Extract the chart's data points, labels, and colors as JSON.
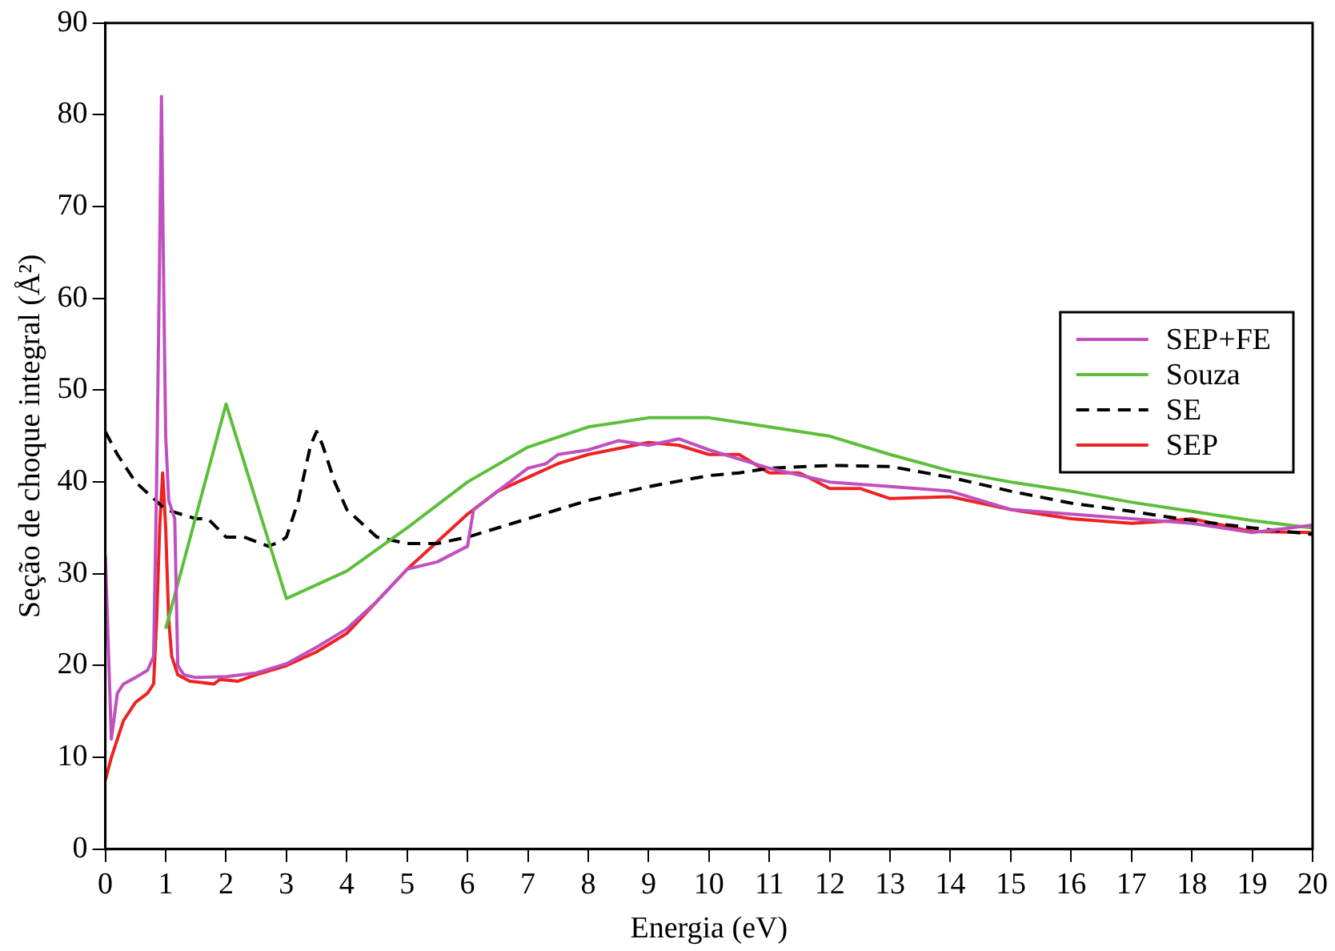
{
  "chart_data": {
    "type": "line",
    "xlabel": "Energia (eV)",
    "ylabel": "Seção de choque integral (Å²)",
    "xlim": [
      0,
      20
    ],
    "xticks": [
      0,
      1,
      2,
      3,
      4,
      5,
      6,
      7,
      8,
      9,
      10,
      11,
      12,
      13,
      14,
      15,
      16,
      17,
      18,
      19,
      20
    ],
    "ylim": [
      0,
      90
    ],
    "yticks": [
      0,
      10,
      20,
      30,
      40,
      50,
      60,
      70,
      80,
      90
    ],
    "grid": false,
    "legend": "right",
    "marker": "none",
    "series": [
      {
        "name": "SEP+FE",
        "color": "#c050c0",
        "line_style": "solid",
        "x": [
          0,
          0.1,
          0.2,
          0.3,
          0.5,
          0.7,
          0.8,
          0.85,
          0.9,
          0.93,
          0.96,
          1.0,
          1.05,
          1.15,
          1.2,
          1.3,
          1.5,
          2,
          2.5,
          3,
          3.5,
          4,
          4.5,
          5,
          5.5,
          6,
          6.1,
          6.5,
          7,
          7.3,
          7.5,
          8,
          8.5,
          9,
          9.5,
          10,
          11,
          12,
          13,
          14,
          15,
          16,
          17,
          18,
          19,
          20
        ],
        "values": [
          32,
          12,
          17,
          18,
          18.7,
          19.5,
          21,
          40,
          65,
          82,
          65,
          45,
          38,
          36,
          20,
          19,
          18.7,
          18.8,
          19.2,
          20.2,
          22,
          24,
          27,
          30.5,
          31.3,
          33,
          37,
          39,
          41.5,
          42,
          43,
          43.5,
          44.5,
          44,
          44.7,
          43.5,
          41.5,
          40,
          39.5,
          39,
          37,
          36.5,
          36,
          35.5,
          34.5,
          35.3
        ]
      },
      {
        "name": "Souza",
        "color": "#5cbf3a",
        "line_style": "solid",
        "x": [
          1,
          2,
          3,
          4,
          5,
          6,
          7,
          8,
          9,
          10,
          11,
          12,
          13,
          14,
          15,
          16,
          17,
          18,
          19,
          20
        ],
        "values": [
          24,
          48.5,
          27.3,
          30.3,
          35,
          40,
          43.8,
          46,
          47,
          47,
          46,
          45,
          43,
          41.2,
          40,
          39,
          37.8,
          36.8,
          35.8,
          35
        ]
      },
      {
        "name": "SE",
        "color": "#000000",
        "line_style": "dashed",
        "x": [
          0,
          0.2,
          0.5,
          1,
          1.5,
          1.7,
          2,
          2.3,
          2.7,
          2.9,
          3,
          3.2,
          3.4,
          3.5,
          3.6,
          3.8,
          4,
          4.5,
          5,
          5.5,
          6,
          6.5,
          7,
          7.5,
          8,
          9,
          10,
          10.5,
          11,
          12,
          13,
          14,
          15,
          16,
          17,
          18,
          19,
          20
        ],
        "values": [
          45.5,
          43,
          40,
          37,
          36,
          36,
          34,
          34,
          33,
          33.5,
          34,
          38,
          44,
          45.5,
          44,
          40,
          37,
          34,
          33.3,
          33.3,
          34,
          35,
          36,
          37,
          38,
          39.5,
          40.7,
          41,
          41.5,
          41.8,
          41.7,
          40.5,
          39,
          37.7,
          36.8,
          35.8,
          35,
          34.3
        ]
      },
      {
        "name": "SEP",
        "color": "#ee2222",
        "line_style": "solid",
        "x": [
          0,
          0.1,
          0.3,
          0.5,
          0.7,
          0.8,
          0.85,
          0.9,
          0.95,
          1.0,
          1.05,
          1.1,
          1.2,
          1.4,
          1.8,
          1.9,
          2.2,
          2.5,
          3,
          3.5,
          4,
          4.5,
          5,
          5.5,
          6,
          6.5,
          7,
          7.5,
          8,
          9,
          9.5,
          10,
          10.5,
          11,
          11.5,
          12,
          12.5,
          13,
          14,
          15,
          16,
          17,
          17.5,
          18,
          19,
          20
        ],
        "values": [
          7.5,
          10,
          14,
          16,
          17,
          18,
          25,
          35,
          41,
          35,
          25,
          21,
          19,
          18.3,
          18,
          18.5,
          18.3,
          19,
          20,
          21.5,
          23.5,
          27,
          30.5,
          33.5,
          36.5,
          39,
          40.5,
          42,
          43,
          44.3,
          44,
          43,
          43,
          41,
          41,
          39.3,
          39.3,
          38.2,
          38.4,
          37,
          36,
          35.5,
          35.7,
          36,
          34.6,
          34.5
        ]
      }
    ]
  }
}
